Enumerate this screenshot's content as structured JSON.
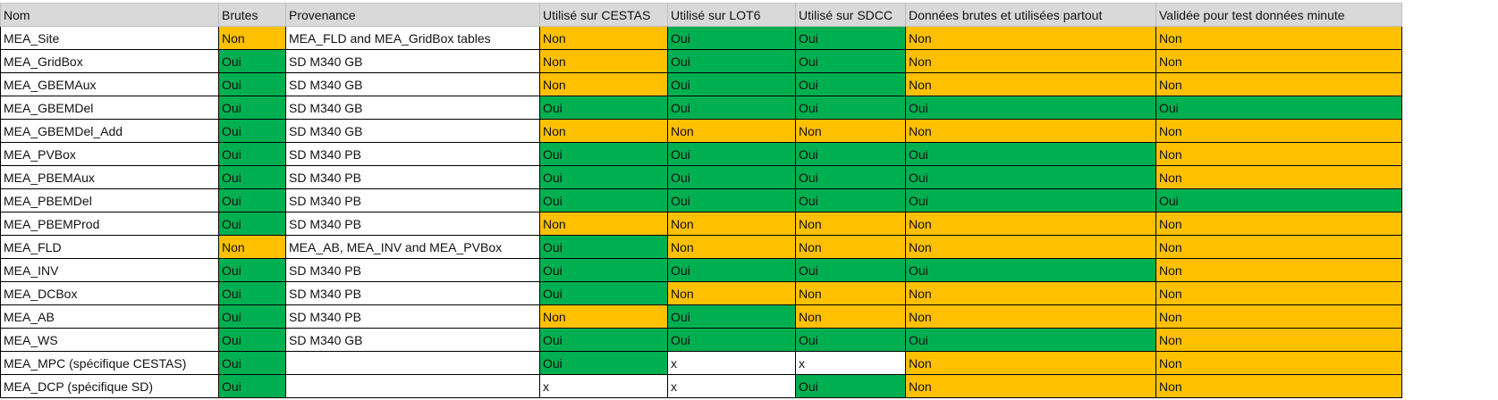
{
  "colors": {
    "oui": "#00B050",
    "non": "#FFC000",
    "header": "#D9D9D9"
  },
  "headers": [
    "Nom",
    "Brutes",
    "Provenance",
    "Utilisé sur CESTAS",
    "Utilisé sur LOT6",
    "Utilisé sur SDCC",
    "Données brutes et utilisées partout",
    "Validée pour test données minute"
  ],
  "rows": [
    [
      "MEA_Site",
      "Non",
      "MEA_FLD and MEA_GridBox tables",
      "Non",
      "Oui",
      "Oui",
      "Non",
      "Non"
    ],
    [
      "MEA_GridBox",
      "Oui",
      "SD M340 GB",
      "Non",
      "Oui",
      "Oui",
      "Non",
      "Non"
    ],
    [
      "MEA_GBEMAux",
      "Oui",
      "SD M340 GB",
      "Non",
      "Oui",
      "Oui",
      "Non",
      "Non"
    ],
    [
      "MEA_GBEMDel",
      "Oui",
      "SD M340 GB",
      "Oui",
      "Oui",
      "Oui",
      "Oui",
      "Oui"
    ],
    [
      "MEA_GBEMDel_Add",
      "Oui",
      "SD M340 GB",
      "Non",
      "Non",
      "Non",
      "Non",
      "Non"
    ],
    [
      "MEA_PVBox",
      "Oui",
      "SD M340 PB",
      "Oui",
      "Oui",
      "Oui",
      "Oui",
      "Non"
    ],
    [
      "MEA_PBEMAux",
      "Oui",
      "SD M340 PB",
      "Oui",
      "Oui",
      "Oui",
      "Oui",
      "Non"
    ],
    [
      "MEA_PBEMDel",
      "Oui",
      "SD M340 PB",
      "Oui",
      "Oui",
      "Oui",
      "Oui",
      "Oui"
    ],
    [
      "MEA_PBEMProd",
      "Oui",
      "SD M340 PB",
      "Non",
      "Non",
      "Non",
      "Non",
      "Non"
    ],
    [
      "MEA_FLD",
      "Non",
      "MEA_AB, MEA_INV and MEA_PVBox",
      "Oui",
      "Non",
      "Non",
      "Non",
      "Non"
    ],
    [
      "MEA_INV",
      "Oui",
      "SD M340 PB",
      "Oui",
      "Oui",
      "Oui",
      "Oui",
      "Non"
    ],
    [
      "MEA_DCBox",
      "Oui",
      "SD M340 PB",
      "Oui",
      "Non",
      "Non",
      "Non",
      "Non"
    ],
    [
      "MEA_AB",
      "Oui",
      "SD M340 PB",
      "Non",
      "Oui",
      "Non",
      "Non",
      "Non"
    ],
    [
      "MEA_WS",
      "Oui",
      "SD M340 GB",
      "Oui",
      "Oui",
      "Oui",
      "Oui",
      "Non"
    ],
    [
      "MEA_MPC (spécifique CESTAS)",
      "Oui",
      "",
      "Oui",
      "x",
      "x",
      "Non",
      "Non"
    ],
    [
      "MEA_DCP (spécifique SD)",
      "Oui",
      "",
      "x",
      "x",
      "Oui",
      "Non",
      "Non"
    ]
  ]
}
